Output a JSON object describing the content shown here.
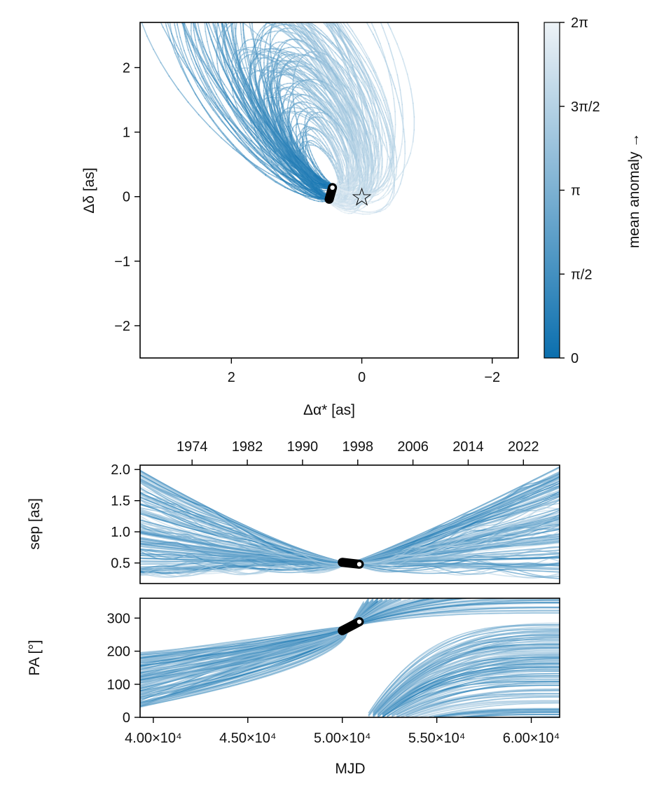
{
  "chart_data": [
    {
      "type": "line",
      "title": "",
      "xlabel": "Δα* [as]",
      "ylabel": "Δδ [as]",
      "xlim": [
        3.4,
        -2.4
      ],
      "ylim": [
        -2.5,
        2.7
      ],
      "xticks": [
        2,
        0,
        -2
      ],
      "xtick_labels": [
        "2",
        "0",
        "−2"
      ],
      "yticks": [
        2,
        1,
        0,
        -1,
        -2
      ],
      "ytick_labels": [
        "2",
        "1",
        "0",
        "−1",
        "−2"
      ],
      "star_marker": {
        "x": 0,
        "y": 0,
        "symbol": "☆"
      },
      "data_track": {
        "x": [
          0.45,
          0.5
        ],
        "y": [
          0.14,
          -0.04
        ]
      },
      "orbit_family": {
        "count": 120,
        "sem_major_min": 0.5,
        "sem_major_max": 2.5,
        "position_angle_deg": 150
      },
      "colorbar": {
        "label": "mean anomaly →",
        "range": [
          0,
          6.2832
        ],
        "ticks": [
          0,
          1.5708,
          3.1416,
          4.7124,
          6.2832
        ],
        "tick_labels": [
          "0",
          "π/2",
          "π",
          "3π/2",
          "2π"
        ],
        "color_low": "#0b6fae",
        "color_high": "#eef3f7"
      }
    },
    {
      "type": "line",
      "xlabel": "",
      "ylabel": "sep [as]",
      "xlim": [
        39300,
        61500
      ],
      "ylim": [
        0.17,
        2.07
      ],
      "yticks": [
        0.5,
        1.0,
        1.5,
        2.0
      ],
      "ytick_labels": [
        "0.5",
        "1.0",
        "1.5",
        "2.0"
      ],
      "top_axis": {
        "label": "",
        "ticks": [
          1974,
          1982,
          1990,
          1998,
          2006,
          2014,
          2022
        ],
        "tick_labels": [
          "1974",
          "1982",
          "1990",
          "1998",
          "2006",
          "2014",
          "2022"
        ]
      },
      "data_track": {
        "x": [
          50000,
          50900
        ],
        "y": [
          0.51,
          0.48
        ]
      }
    },
    {
      "type": "line",
      "xlabel": "MJD",
      "ylabel": "PA [°]",
      "xlim": [
        39300,
        61500
      ],
      "ylim": [
        0,
        360
      ],
      "xticks": [
        40000,
        45000,
        50000,
        55000,
        60000
      ],
      "xtick_labels": [
        "4.00×10⁴",
        "4.50×10⁴",
        "5.00×10⁴",
        "5.50×10⁴",
        "6.00×10⁴"
      ],
      "yticks": [
        0,
        100,
        200,
        300
      ],
      "ytick_labels": [
        "0",
        "100",
        "200",
        "300"
      ],
      "data_track": {
        "x": [
          50000,
          50900
        ],
        "y": [
          262,
          289
        ]
      }
    }
  ]
}
